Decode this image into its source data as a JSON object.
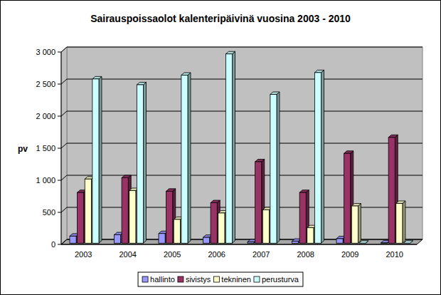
{
  "chart_data": {
    "type": "bar",
    "title": "Sairauspoissaolot kalenteripäivinä vuosina 2003 - 2010",
    "y_label": "pv",
    "categories": [
      "2003",
      "2004",
      "2005",
      "2006",
      "2007",
      "2008",
      "2009",
      "2010"
    ],
    "series": [
      {
        "name": "hallinto",
        "color": "#9999ff",
        "values": [
          110,
          130,
          150,
          90,
          20,
          30,
          70,
          5
        ]
      },
      {
        "name": "sivistys",
        "color": "#993366",
        "values": [
          790,
          1020,
          810,
          630,
          1270,
          790,
          1400,
          1650
        ]
      },
      {
        "name": "tekninen",
        "color": "#ffffcc",
        "values": [
          1000,
          820,
          370,
          470,
          520,
          240,
          580,
          620
        ]
      },
      {
        "name": "perusturva",
        "color": "#ccffff",
        "values": [
          2560,
          2470,
          2620,
          2950,
          2320,
          2660,
          0,
          0
        ]
      }
    ],
    "ylim": [
      0,
      3000
    ],
    "yticks": [
      0,
      500,
      {
        "value": 1000,
        "label": "1 000"
      },
      {
        "value": 1500,
        "label": "1 500"
      },
      {
        "value": 2000,
        "label": "2 000"
      },
      {
        "value": 2500,
        "label": "2 500"
      },
      {
        "value": 3000,
        "label": "3 000"
      }
    ],
    "grid": true,
    "legend": "bottom"
  }
}
